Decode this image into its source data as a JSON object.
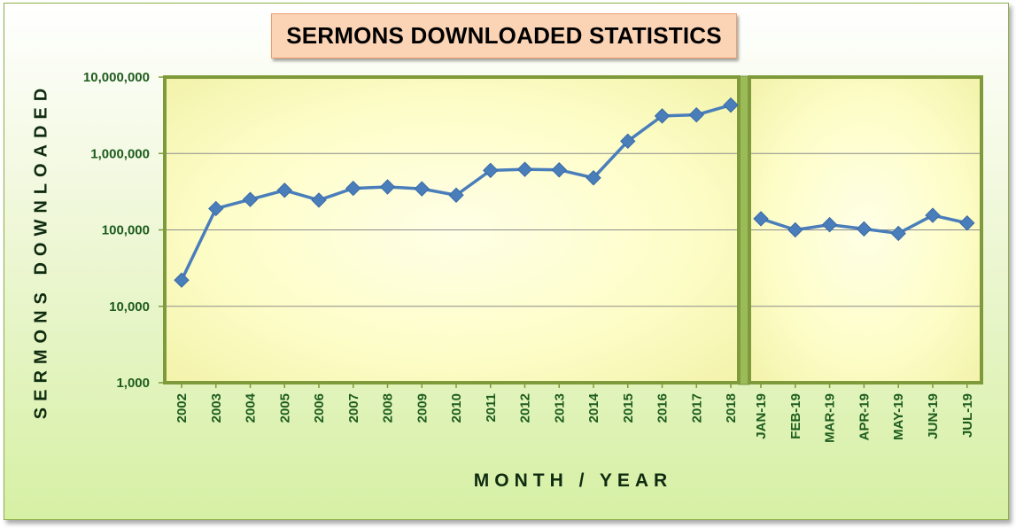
{
  "chart_data": {
    "type": "line",
    "title": "SERMONS DOWNLOADED STATISTICS",
    "xlabel": "MONTH / YEAR",
    "ylabel": "SERMONS DOWNLOADED",
    "y_scale": "log",
    "ylim": [
      1000,
      10000000
    ],
    "y_ticks": [
      "1,000",
      "10,000",
      "100,000",
      "1,000,000",
      "10,000,000"
    ],
    "y_tick_values": [
      1000,
      10000,
      100000,
      1000000,
      10000000
    ],
    "grid": true,
    "legend": "none",
    "series_color": "#4a7ebb",
    "panels": [
      {
        "categories": [
          "2002",
          "2003",
          "2004",
          "2005",
          "2006",
          "2007",
          "2008",
          "2009",
          "2010",
          "2011",
          "2012",
          "2013",
          "2014",
          "2015",
          "2016",
          "2017",
          "2018"
        ],
        "values": [
          22000,
          190000,
          250000,
          330000,
          245000,
          350000,
          365000,
          345000,
          285000,
          600000,
          620000,
          610000,
          480000,
          1450000,
          3100000,
          3200000,
          4300000
        ]
      },
      {
        "categories": [
          "JAN-19",
          "FEB-19",
          "MAR-19",
          "APR-19",
          "MAY-19",
          "JUN-19",
          "JUL-19"
        ],
        "values": [
          140000,
          100000,
          117000,
          103000,
          90000,
          155000,
          123000
        ]
      }
    ]
  }
}
